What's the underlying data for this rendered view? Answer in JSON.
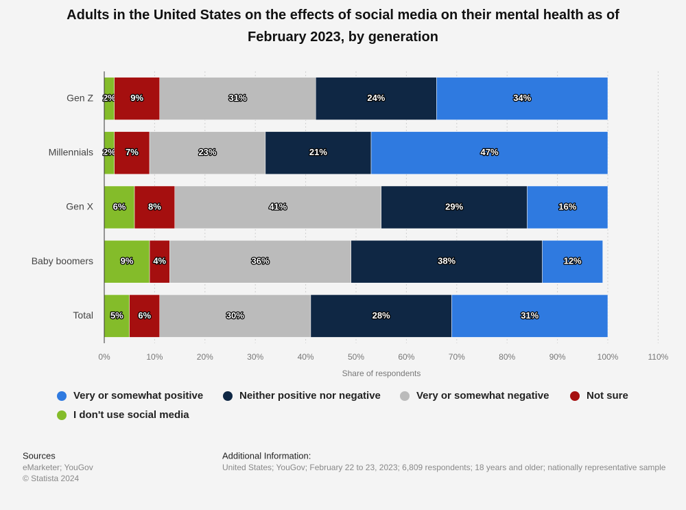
{
  "chart_data": {
    "type": "stacked-bar",
    "orientation": "horizontal",
    "title": "Adults in the United States on the effects of social media on their mental health as of February 2023, by generation",
    "x_label": "Share of respondents",
    "categories": [
      "Gen Z",
      "Millennials",
      "Gen X",
      "Baby boomers",
      "Total"
    ],
    "series": [
      {
        "name": "Very or somewhat positive",
        "color": "#2f7ae0",
        "values": [
          34,
          47,
          16,
          12,
          31
        ],
        "value_labels": [
          "34%",
          "47%",
          "16%",
          "12%",
          "31%"
        ]
      },
      {
        "name": "Neither positive nor negative",
        "color": "#0f2744",
        "values": [
          24,
          21,
          29,
          38,
          28
        ],
        "value_labels": [
          "24%",
          "21%",
          "29%",
          "38%",
          "28%"
        ]
      },
      {
        "name": "Very or somewhat negative",
        "color": "#bbbbbb",
        "values": [
          31,
          23,
          41,
          36,
          30
        ],
        "value_labels": [
          "31%",
          "23%",
          "41%",
          "36%",
          "30%"
        ]
      },
      {
        "name": "Not sure",
        "color": "#a50f0f",
        "values": [
          9,
          7,
          8,
          4,
          6
        ],
        "value_labels": [
          "9%",
          "7%",
          "8%",
          "4%",
          "6%"
        ]
      },
      {
        "name": "I don't use social media",
        "color": "#84bc2a",
        "values": [
          2,
          2,
          6,
          9,
          5
        ],
        "value_labels": [
          "2%",
          "2%",
          "6%",
          "9%",
          "5%"
        ]
      }
    ],
    "xlim": [
      0,
      110
    ],
    "xticks": [
      {
        "value": 0,
        "label": "0%"
      },
      {
        "value": 10,
        "label": "10%"
      },
      {
        "value": 20,
        "label": "20%"
      },
      {
        "value": 30,
        "label": "30%"
      },
      {
        "value": 40,
        "label": "40%"
      },
      {
        "value": 50,
        "label": "50%"
      },
      {
        "value": 60,
        "label": "60%"
      },
      {
        "value": 70,
        "label": "70%"
      },
      {
        "value": 80,
        "label": "80%"
      },
      {
        "value": 90,
        "label": "90%"
      },
      {
        "value": 100,
        "label": "100%"
      },
      {
        "value": 110,
        "label": "110%"
      }
    ],
    "grid": true,
    "legend": "bottom"
  },
  "footer": {
    "sources_label": "Sources",
    "sources": "eMarketer; YouGov",
    "copyright": "© Statista 2024",
    "additional_info_label": "Additional Information:",
    "additional_info": "United States; YouGov; February 22 to 23, 2023; 6,809 respondents; 18 years and older; nationally representative sample"
  }
}
